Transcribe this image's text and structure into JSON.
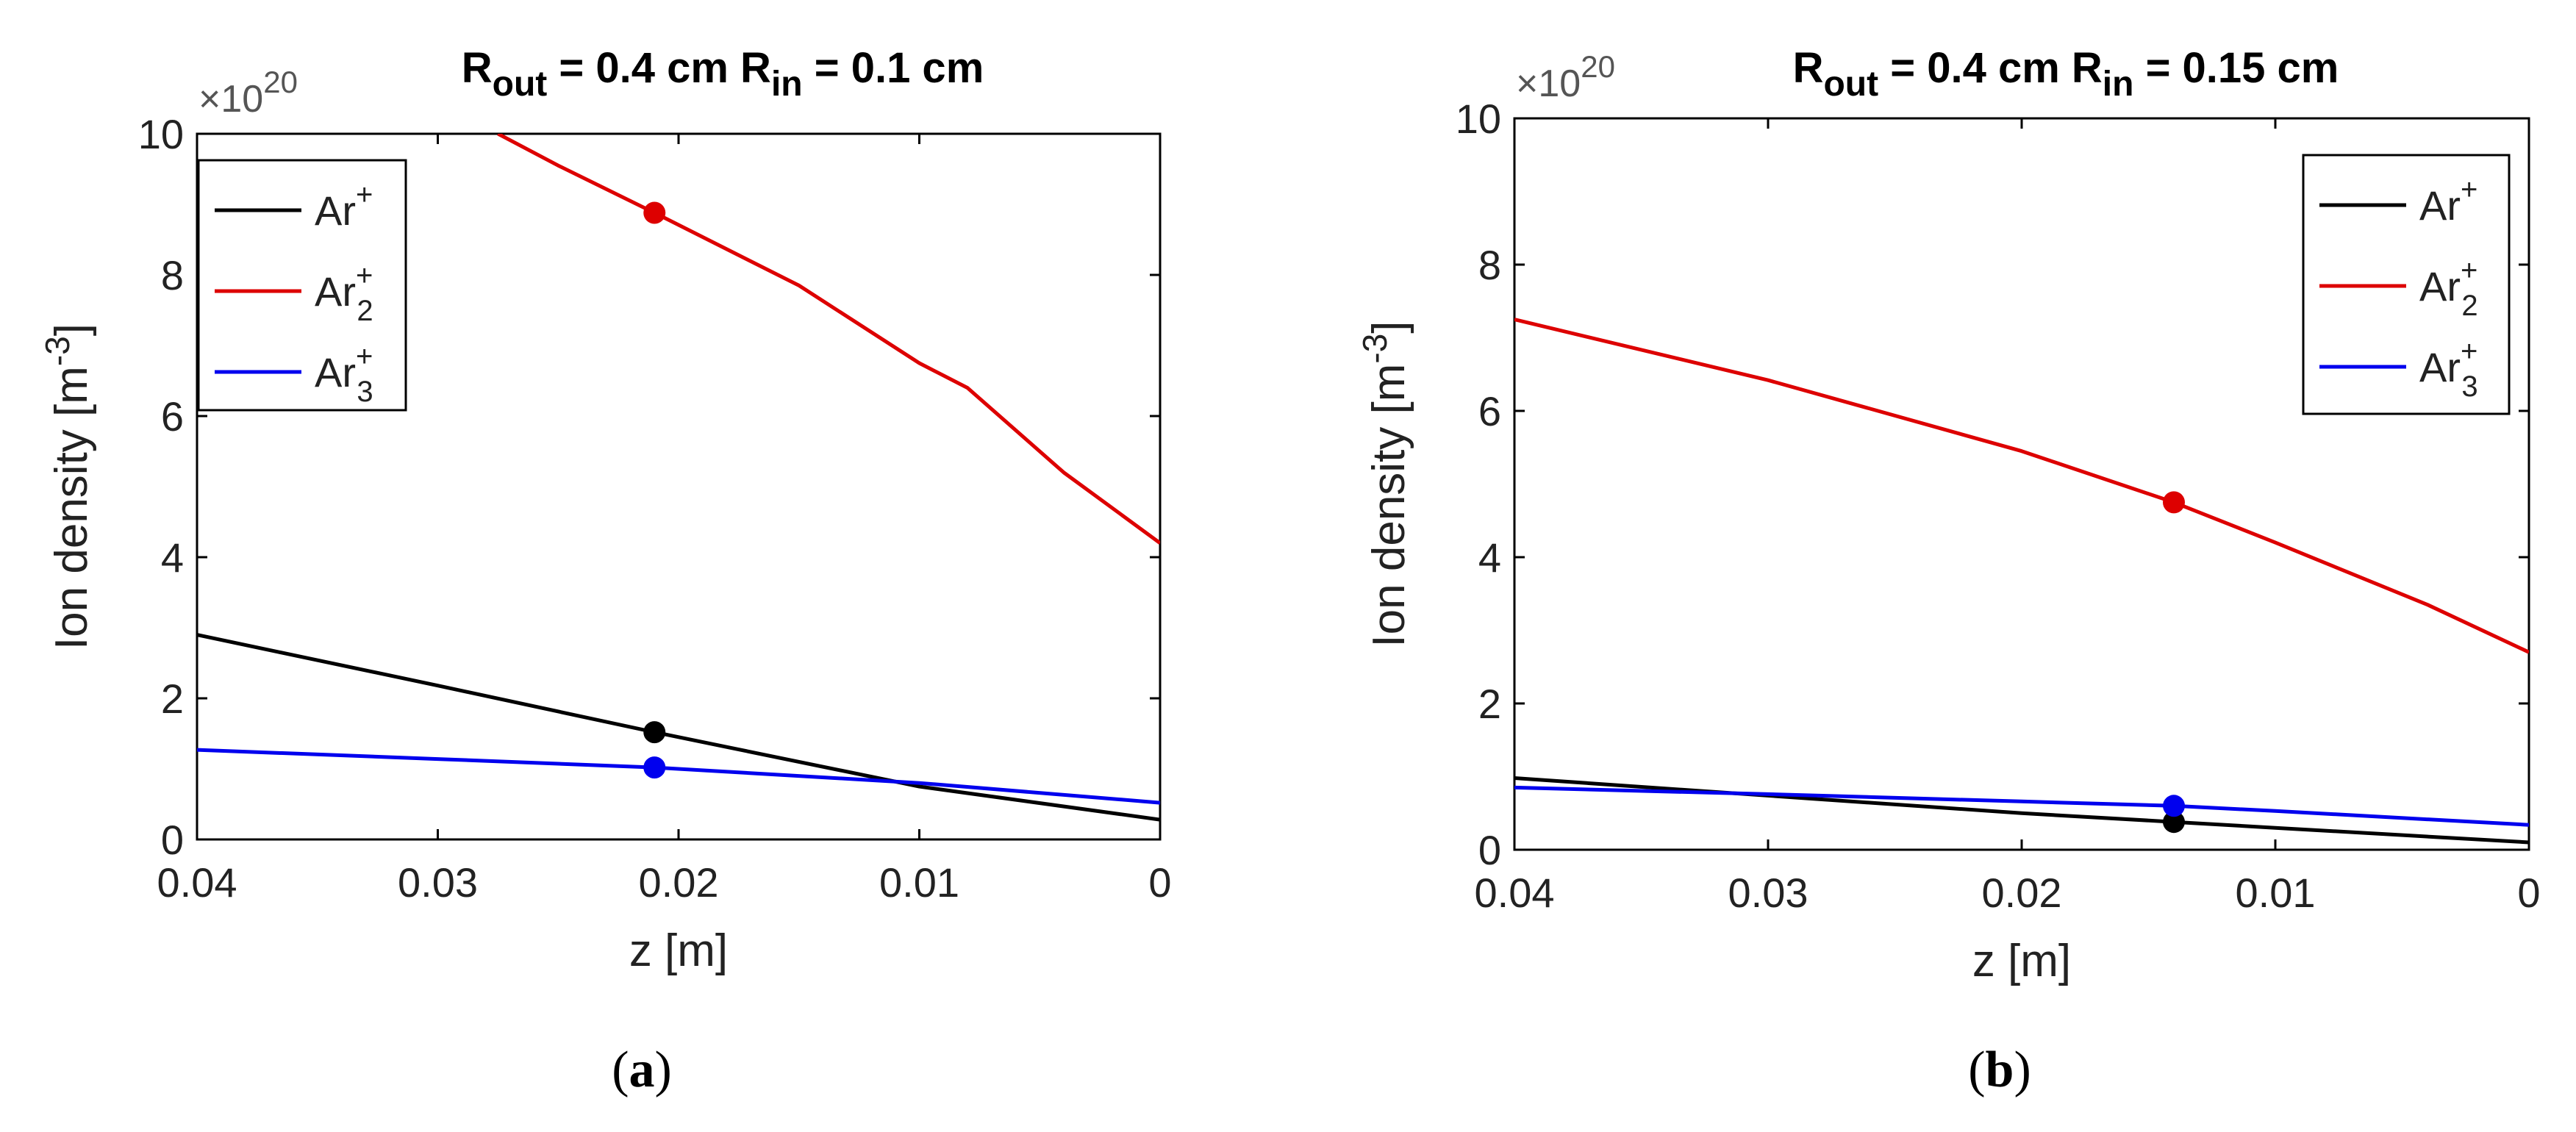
{
  "chart_data": [
    {
      "type": "line",
      "panel": "a",
      "caption_open": "(",
      "caption_letter": "a",
      "caption_close": ")",
      "title": {
        "r_out_main": "R",
        "r_out_sub": "out",
        "r_out_value": " = 0.4 cm ",
        "r_in_main": "R",
        "r_in_sub": "in",
        "r_in_value": " = 0.1 cm"
      },
      "xlabel": "z [m]",
      "ylabel": {
        "main": "Ion density [m",
        "sup": "-3",
        "close": "]"
      },
      "y_multiplier": {
        "base": "×10",
        "exp": "20"
      },
      "xlim": [
        0.04,
        0
      ],
      "ylim": [
        0,
        10
      ],
      "xticks": [
        "0.04",
        "0.03",
        "0.02",
        "0.01",
        "0"
      ],
      "yticks": [
        "0",
        "2",
        "4",
        "6",
        "8",
        "10"
      ],
      "legend_position": "top-left",
      "series": [
        {
          "name": "Ar",
          "sup": "+",
          "sub": "",
          "color": "#000000",
          "x": [
            0.04,
            0.03,
            0.021,
            0.01,
            0
          ],
          "y": [
            2.9,
            2.18,
            1.52,
            0.75,
            0.28
          ],
          "marker": {
            "x": 0.021,
            "y": 1.52
          }
        },
        {
          "name": "Ar",
          "sup": "+",
          "sub": "2",
          "color": "#dd0000",
          "x": [
            0.0275,
            0.025,
            0.021,
            0.015,
            0.01,
            0.008,
            0.004,
            0
          ],
          "y": [
            10.0,
            9.55,
            8.88,
            7.85,
            6.75,
            6.4,
            5.2,
            4.2
          ],
          "marker": {
            "x": 0.021,
            "y": 8.88
          }
        },
        {
          "name": "Ar",
          "sup": "+",
          "sub": "3",
          "color": "#0000ee",
          "x": [
            0.04,
            0.03,
            0.021,
            0.01,
            0
          ],
          "y": [
            1.27,
            1.14,
            1.02,
            0.8,
            0.52
          ],
          "marker": {
            "x": 0.021,
            "y": 1.02
          }
        }
      ]
    },
    {
      "type": "line",
      "panel": "b",
      "caption_open": "(",
      "caption_letter": "b",
      "caption_close": ")",
      "title": {
        "r_out_main": "R",
        "r_out_sub": "out",
        "r_out_value": " = 0.4 cm ",
        "r_in_main": "R",
        "r_in_sub": "in",
        "r_in_value": " = 0.15 cm"
      },
      "xlabel": "z [m]",
      "ylabel": {
        "main": "Ion density [m",
        "sup": "-3",
        "close": "]"
      },
      "y_multiplier": {
        "base": "×10",
        "exp": "20"
      },
      "xlim": [
        0.04,
        0
      ],
      "ylim": [
        0,
        10
      ],
      "xticks": [
        "0.04",
        "0.03",
        "0.02",
        "0.01",
        "0"
      ],
      "yticks": [
        "0",
        "2",
        "4",
        "6",
        "8",
        "10"
      ],
      "legend_position": "top-right",
      "series": [
        {
          "name": "Ar",
          "sup": "+",
          "sub": "",
          "color": "#000000",
          "x": [
            0.04,
            0.03,
            0.02,
            0.014,
            0.01,
            0
          ],
          "y": [
            0.98,
            0.74,
            0.5,
            0.38,
            0.3,
            0.1
          ],
          "marker": {
            "x": 0.014,
            "y": 0.38
          }
        },
        {
          "name": "Ar",
          "sup": "+",
          "sub": "2",
          "color": "#dd0000",
          "x": [
            0.04,
            0.03,
            0.02,
            0.014,
            0.01,
            0.004,
            0
          ],
          "y": [
            7.25,
            6.42,
            5.45,
            4.75,
            4.2,
            3.35,
            2.7
          ],
          "marker": {
            "x": 0.014,
            "y": 4.75
          }
        },
        {
          "name": "Ar",
          "sup": "+",
          "sub": "3",
          "color": "#0000ee",
          "x": [
            0.04,
            0.03,
            0.02,
            0.014,
            0.01,
            0
          ],
          "y": [
            0.85,
            0.76,
            0.66,
            0.6,
            0.53,
            0.34
          ],
          "marker": {
            "x": 0.014,
            "y": 0.6
          }
        }
      ]
    }
  ]
}
